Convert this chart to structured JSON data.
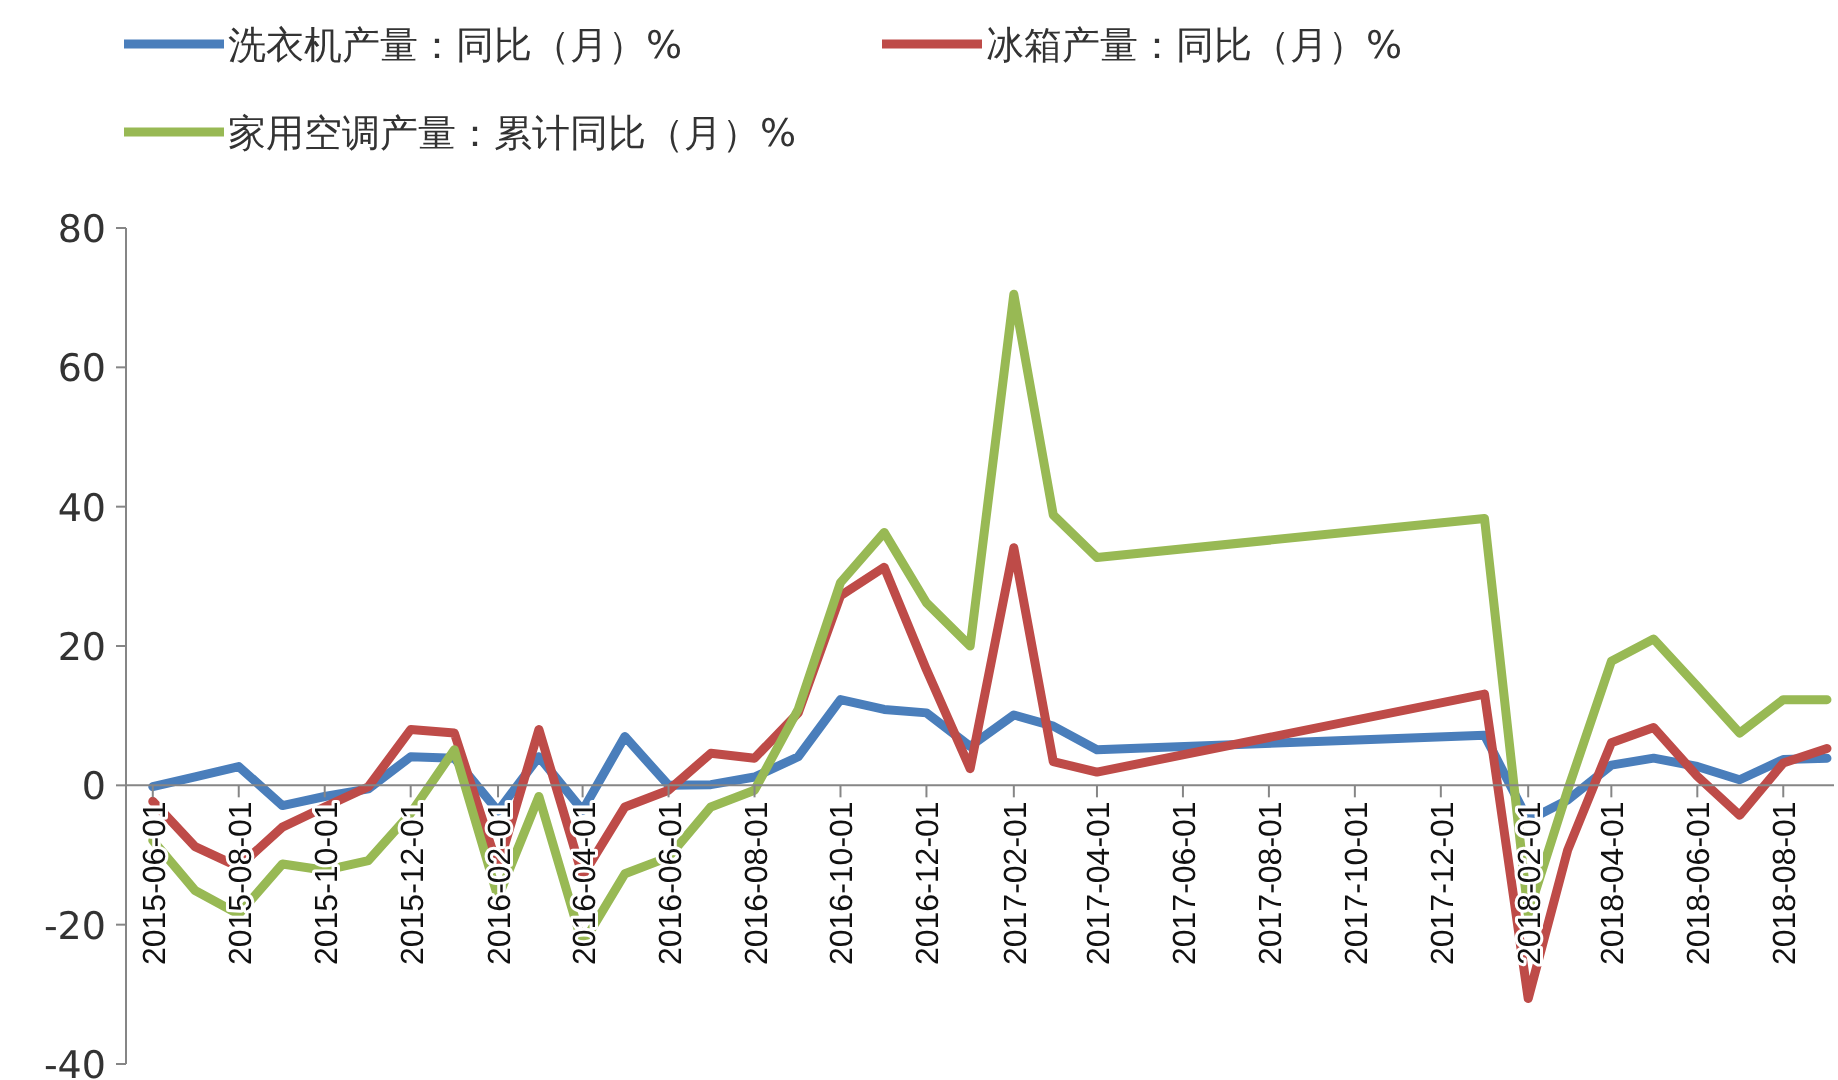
{
  "chart_data": {
    "type": "line",
    "x": [
      "2015-06",
      "2015-07",
      "2015-08",
      "2015-09",
      "2015-10",
      "2015-11",
      "2015-12",
      "2016-01",
      "2016-02",
      "2016-03",
      "2016-04",
      "2016-05",
      "2016-06",
      "2016-07",
      "2016-08",
      "2016-09",
      "2016-10",
      "2016-11",
      "2016-12",
      "2017-01",
      "2017-02",
      "2017-03",
      "2017-04",
      "2018-01",
      "2018-02",
      "2018-03",
      "2018-04",
      "2018-05",
      "2018-06",
      "2018-07",
      "2018-08",
      "2018-09"
    ],
    "series": [
      {
        "name": "洗衣机产量：同比（月）%",
        "color": "#4a7ebb",
        "values": [
          -0.2,
          1.2,
          2.7,
          -2.9,
          -1.6,
          -0.5,
          4.1,
          3.9,
          -3.7,
          4.1,
          -3.6,
          7.0,
          0,
          0.1,
          1.2,
          4.1,
          12.3,
          10.9,
          10.4,
          5.6,
          10.1,
          8.5,
          5.1,
          7.2,
          -5.0,
          -2.1,
          2.9,
          3.9,
          2.7,
          0.8,
          3.7,
          3.9
        ]
      },
      {
        "name": "冰箱产量：同比（月）%",
        "color": "#be4b48",
        "values": [
          -2.3,
          -8.8,
          -11.7,
          -6.0,
          -3.1,
          -0.2,
          8.0,
          7.5,
          -11.8,
          8.0,
          -13.0,
          -3.1,
          -0.7,
          4.6,
          3.9,
          10.4,
          27.2,
          31.3,
          16.6,
          2.4,
          34.1,
          3.4,
          1.9,
          13.1,
          -30.6,
          -9.3,
          6.1,
          8.3,
          1.3,
          -4.3,
          3.2,
          5.3
        ]
      },
      {
        "name": "家用空调产量：累计同比（月）%",
        "color": "#98b954",
        "values": [
          -7.9,
          -15.1,
          -18.5,
          -11.3,
          -12.2,
          -10.8,
          -4.0,
          5.1,
          -16.1,
          -1.6,
          -22.8,
          -12.7,
          -10.3,
          -3.1,
          -0.7,
          10.9,
          29.1,
          36.3,
          26.2,
          20.0,
          70.5,
          38.8,
          32.7,
          38.3,
          -18.5,
          -0.7,
          17.8,
          21.0,
          14.2,
          7.5,
          12.3,
          12.3
        ]
      }
    ],
    "xlim": [
      "2015-05-13",
      "2018-09-06"
    ],
    "xticks": [
      {
        "value": "2015-06-01",
        "label": "2015-06-01"
      },
      {
        "value": "2015-08-01",
        "label": "2015-08-01"
      },
      {
        "value": "2015-10-01",
        "label": "2015-10-01"
      },
      {
        "value": "2015-12-01",
        "label": "2015-12-01"
      },
      {
        "value": "2016-02-01",
        "label": "2016-02-01"
      },
      {
        "value": "2016-04-01",
        "label": "2016-04-01"
      },
      {
        "value": "2016-06-01",
        "label": "2016-06-01"
      },
      {
        "value": "2016-08-01",
        "label": "2016-08-01"
      },
      {
        "value": "2016-10-01",
        "label": "2016-10-01"
      },
      {
        "value": "2016-12-01",
        "label": "2016-12-01"
      },
      {
        "value": "2017-02-01",
        "label": "2017-02-01"
      },
      {
        "value": "2017-04-01",
        "label": "2017-04-01"
      },
      {
        "value": "2017-06-01",
        "label": "2017-06-01"
      },
      {
        "value": "2017-08-01",
        "label": "2017-08-01"
      },
      {
        "value": "2017-10-01",
        "label": "2017-10-01"
      },
      {
        "value": "2017-12-01",
        "label": "2017-12-01"
      },
      {
        "value": "2018-02-01",
        "label": "2018-02-01"
      },
      {
        "value": "2018-04-01",
        "label": "2018-04-01"
      },
      {
        "value": "2018-06-01",
        "label": "2018-06-01"
      },
      {
        "value": "2018-08-01",
        "label": "2018-08-01"
      }
    ],
    "ylim": [
      -40,
      80
    ],
    "yticks": [
      -40,
      -20,
      0,
      20,
      40,
      60,
      80
    ],
    "grid": false,
    "legend": "top",
    "marker": "none",
    "line_style": "solid"
  }
}
